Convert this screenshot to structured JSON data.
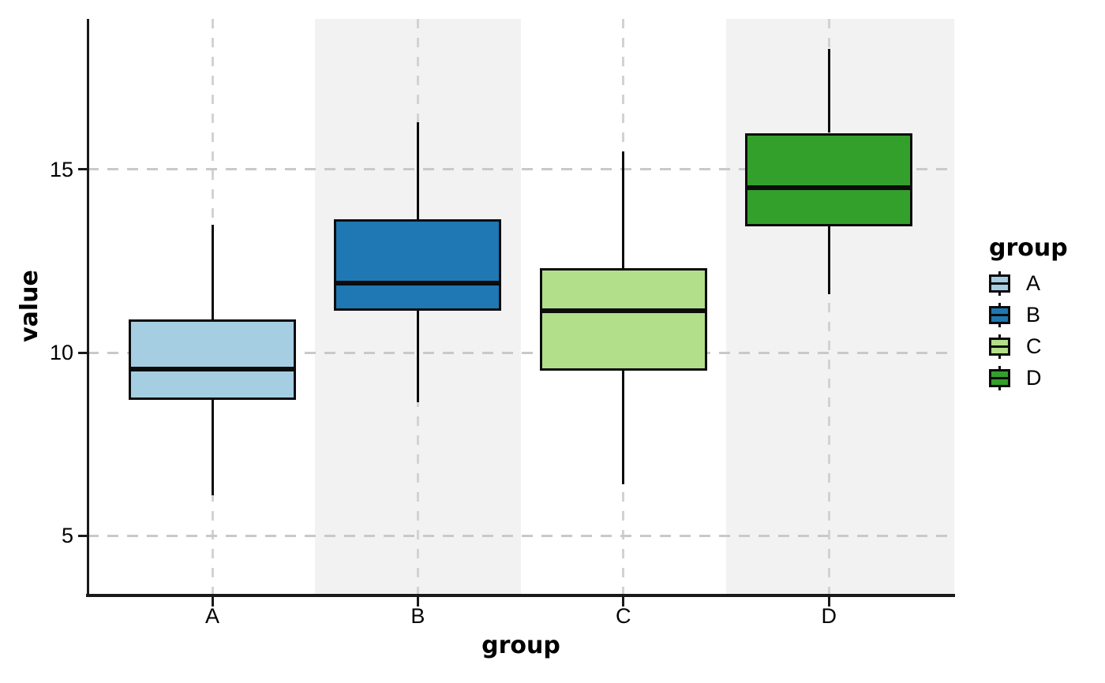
{
  "chart_data": {
    "type": "boxplot",
    "title": "",
    "xlabel": "group",
    "ylabel": "value",
    "categories": [
      "A",
      "B",
      "C",
      "D"
    ],
    "y_ticks": [
      5,
      10,
      15
    ],
    "ylim": [
      3.4,
      19.1
    ],
    "grid": "dashed",
    "legend": {
      "title": "group",
      "position": "right",
      "entries": [
        "A",
        "B",
        "C",
        "D"
      ]
    },
    "banded_categories": [
      "B",
      "D"
    ],
    "series": [
      {
        "name": "A",
        "color": "#A6CEE3",
        "whisker_low": 6.1,
        "q1": 8.7,
        "median": 9.55,
        "q3": 10.9,
        "whisker_high": 13.5
      },
      {
        "name": "B",
        "color": "#1F78B4",
        "whisker_low": 8.65,
        "q1": 11.15,
        "median": 11.9,
        "q3": 13.65,
        "whisker_high": 16.3
      },
      {
        "name": "C",
        "color": "#B2DF8A",
        "whisker_low": 6.4,
        "q1": 9.5,
        "median": 11.15,
        "q3": 12.3,
        "whisker_high": 15.5
      },
      {
        "name": "D",
        "color": "#33A02C",
        "whisker_low": 11.6,
        "q1": 13.45,
        "median": 14.5,
        "q3": 16.0,
        "whisker_high": 18.3
      }
    ],
    "colors": {
      "band": "#F2F2F2",
      "grid": "#CCCCCC",
      "axis": "#1A1A1A",
      "box_stroke": "#0C0C0C"
    }
  }
}
